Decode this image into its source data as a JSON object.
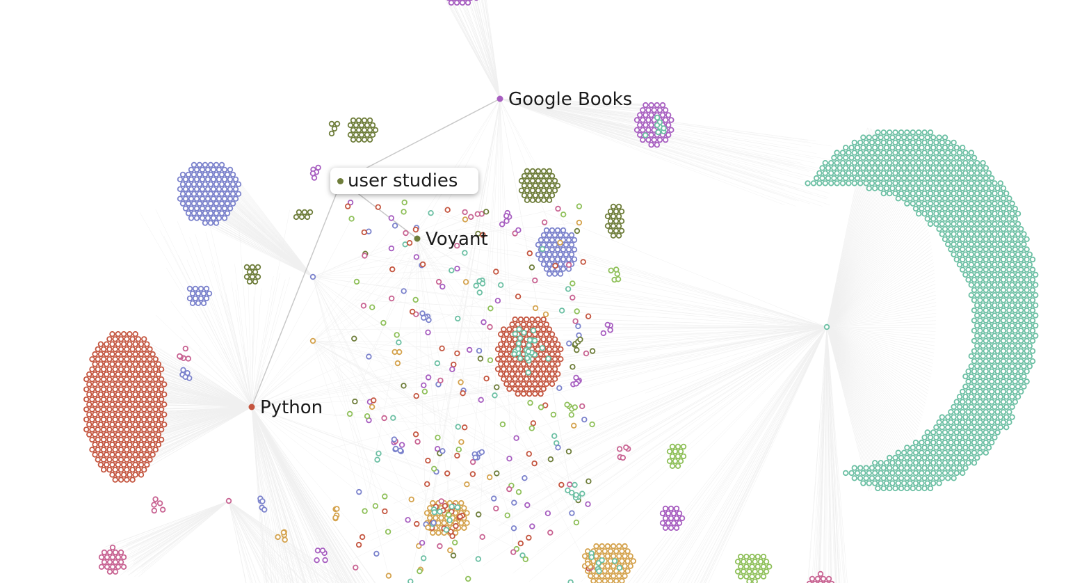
{
  "colors": {
    "teal": "#6bbfa3",
    "red": "#c4553f",
    "blue": "#7b82cc",
    "olive": "#6e7d3a",
    "purple": "#a75ec0",
    "pink": "#c86392",
    "orange": "#d4a24c",
    "green": "#8fc05a",
    "edge": "#f0f0f0",
    "highlight_edge": "#c8c8c8"
  },
  "hubs": [
    {
      "id": "google-books",
      "label": "Google Books",
      "color": "purple"
    },
    {
      "id": "voyant",
      "label": "Voyant",
      "color": "olive"
    },
    {
      "id": "python",
      "label": "Python",
      "color": "red"
    },
    {
      "id": "teal-hub",
      "label": "",
      "color": "teal"
    },
    {
      "id": "user-studies",
      "label": "",
      "color": "olive"
    }
  ],
  "tooltip": {
    "label": "user studies",
    "color": "olive"
  }
}
